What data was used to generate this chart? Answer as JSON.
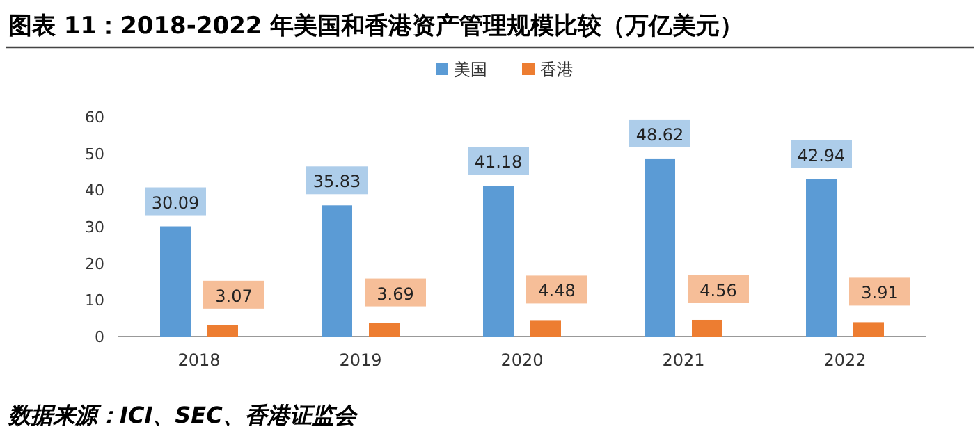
{
  "chart_data": {
    "type": "bar",
    "title": "图表 11：2018-2022 年美国和香港资产管理规模比较（万亿美元）",
    "categories": [
      "2018",
      "2019",
      "2020",
      "2021",
      "2022"
    ],
    "series": [
      {
        "name": "美国",
        "color": "#5b9bd5",
        "values": [
          30.09,
          35.83,
          41.18,
          48.62,
          42.94
        ]
      },
      {
        "name": "香港",
        "color": "#ed7d31",
        "values": [
          3.07,
          3.69,
          4.48,
          4.56,
          3.91
        ]
      }
    ],
    "ylim": [
      0,
      60
    ],
    "yticks": [
      0,
      10,
      20,
      30,
      40,
      50,
      60
    ],
    "data_labels": true,
    "legend": "top",
    "grid": false,
    "annotations": [
      "数据来源：ICI、SEC、香港证监会"
    ]
  }
}
